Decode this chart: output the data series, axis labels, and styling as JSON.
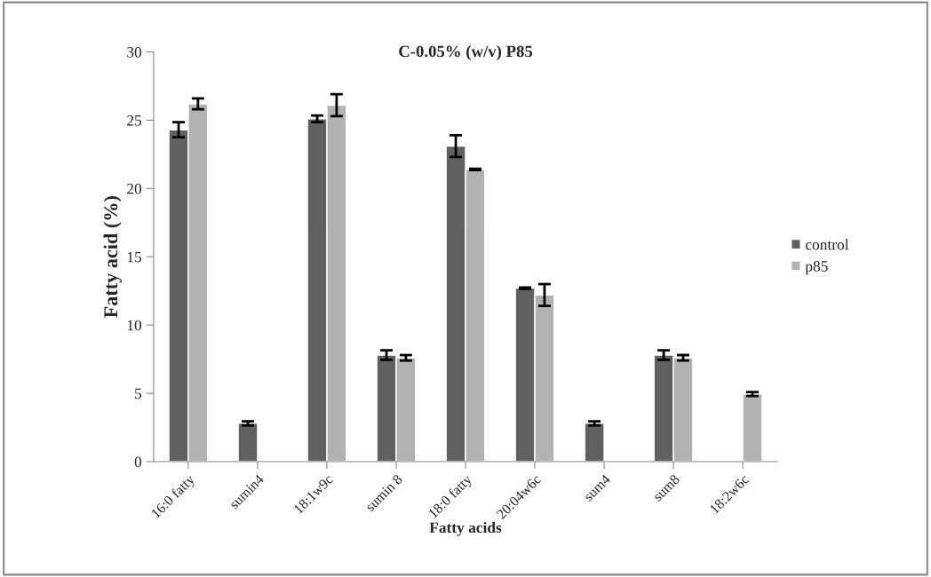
{
  "chart_data": {
    "type": "bar",
    "title": "C-0.05% (w/v) P85",
    "xlabel": "Fatty acids",
    "ylabel": "Fatty acid (%)",
    "categories": [
      "16:0 fatty",
      "sumin4",
      "18:1w9c",
      "sumin 8",
      "18:0 fatty",
      "20:04w6c",
      "sum4",
      "sum8",
      "18:2w6c"
    ],
    "series": [
      {
        "name": "control",
        "color": "#606060",
        "values": [
          24.3,
          2.8,
          25.1,
          7.8,
          23.1,
          12.7,
          2.8,
          7.8,
          null
        ],
        "errors": [
          0.55,
          0.15,
          0.25,
          0.35,
          0.8,
          0.05,
          0.15,
          0.35,
          null
        ]
      },
      {
        "name": "p85",
        "color": "#b2b2b2",
        "values": [
          26.2,
          null,
          26.1,
          7.6,
          21.4,
          12.2,
          null,
          7.6,
          4.95
        ],
        "errors": [
          0.4,
          null,
          0.8,
          0.2,
          0.05,
          0.8,
          null,
          0.2,
          0.15
        ]
      }
    ],
    "ylim": [
      0,
      30
    ],
    "yticks": [
      0,
      5,
      10,
      15,
      20,
      25,
      30
    ],
    "grid": false,
    "legend": "right"
  }
}
